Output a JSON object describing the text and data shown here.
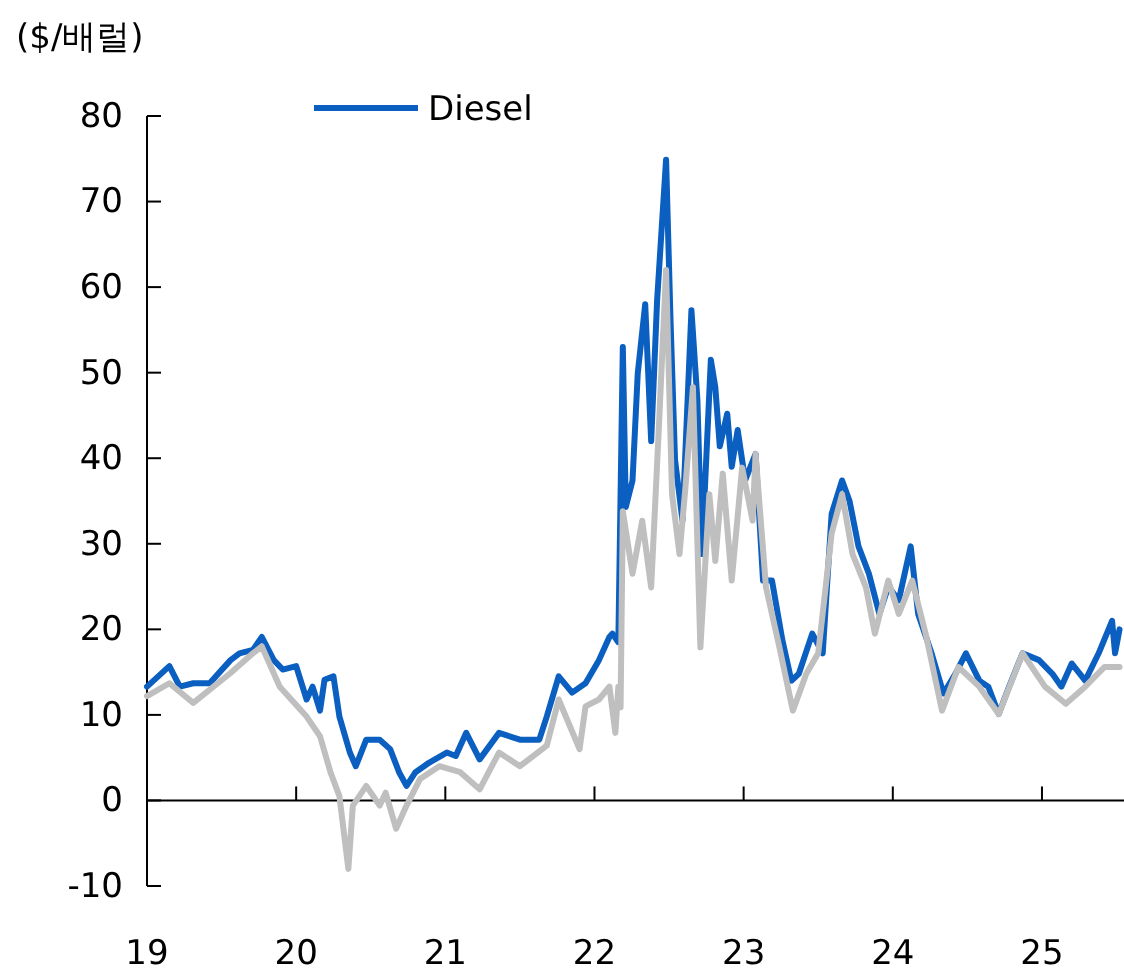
{
  "chart_data": {
    "type": "line",
    "ylabel": "($/배럴)",
    "xlim": [
      19,
      25.55
    ],
    "xticks": [
      19,
      20,
      21,
      22,
      23,
      24,
      25
    ],
    "ylim": [
      -10,
      80
    ],
    "yticks": [
      -10,
      0,
      10,
      20,
      30,
      40,
      50,
      60,
      70,
      80
    ],
    "legend": "top left",
    "marker": "none",
    "line_style": "solid",
    "series": [
      {
        "name": "Diesel",
        "color": "#0a5fc0",
        "x": [
          19.0,
          19.15,
          19.22,
          19.31,
          19.42,
          19.56,
          19.62,
          19.71,
          19.77,
          19.85,
          19.91,
          20.0,
          20.07,
          20.11,
          20.16,
          20.19,
          20.25,
          20.29,
          20.36,
          20.4,
          20.47,
          20.56,
          20.63,
          20.69,
          20.74,
          20.8,
          20.89,
          21.01,
          21.07,
          21.14,
          21.23,
          21.36,
          21.5,
          21.63,
          21.68,
          21.76,
          21.85,
          21.94,
          22.03,
          22.1,
          22.12,
          22.16,
          22.19,
          22.21,
          22.255,
          22.29,
          22.34,
          22.38,
          22.42,
          22.48,
          22.51,
          22.54,
          22.59,
          22.65,
          22.69,
          22.72,
          22.78,
          22.81,
          22.84,
          22.89,
          22.92,
          22.96,
          23.01,
          23.08,
          23.13,
          23.19,
          23.26,
          23.32,
          23.37,
          23.46,
          23.53,
          23.59,
          23.66,
          23.71,
          23.77,
          23.84,
          23.91,
          23.97,
          24.04,
          24.12,
          24.17,
          24.26,
          24.34,
          24.42,
          24.49,
          24.58,
          24.64,
          24.71,
          24.78,
          24.87,
          24.98,
          25.07,
          25.13,
          25.2,
          25.29,
          25.38,
          25.47,
          25.49,
          25.52
        ],
        "values": [
          13.3,
          15.7,
          13.3,
          13.7,
          13.7,
          16.4,
          17.2,
          17.6,
          19.1,
          16.4,
          15.3,
          15.7,
          11.8,
          13.3,
          10.5,
          14.1,
          14.5,
          9.8,
          5.6,
          4,
          7.1,
          7.1,
          6,
          3.3,
          1.7,
          3.3,
          4.4,
          5.6,
          5.2,
          7.9,
          4.8,
          7.9,
          7.1,
          7.1,
          9.8,
          14.5,
          12.6,
          13.7,
          16.4,
          19.1,
          19.5,
          18.5,
          53,
          34.3,
          37.4,
          49.9,
          58,
          42,
          58.5,
          74.9,
          56,
          39.8,
          32.7,
          57.3,
          46.8,
          28.8,
          51.5,
          48.3,
          41.4,
          45.2,
          39,
          43.3,
          37.4,
          40.5,
          25.7,
          25.7,
          18.7,
          14,
          14.8,
          19.5,
          17.2,
          33.5,
          37.4,
          35,
          29.7,
          26.5,
          21.8,
          25,
          23.4,
          29.7,
          21.8,
          17.2,
          12.5,
          14.8,
          17.2,
          14,
          13.3,
          10.1,
          13.3,
          17.2,
          16.4,
          14.8,
          13.3,
          16,
          14,
          17.2,
          21,
          17.2,
          20
        ]
      },
      {
        "color": "#bfbfbf",
        "x": [
          19.0,
          19.15,
          19.31,
          19.56,
          19.71,
          19.77,
          19.89,
          20.07,
          20.16,
          20.23,
          20.29,
          20.35,
          20.38,
          20.47,
          20.56,
          20.6,
          20.67,
          20.74,
          20.83,
          20.96,
          21.1,
          21.23,
          21.36,
          21.5,
          21.68,
          21.76,
          21.9,
          21.94,
          22.03,
          22.1,
          22.14,
          22.16,
          22.175,
          22.19,
          22.255,
          22.32,
          22.38,
          22.43,
          22.48,
          22.52,
          22.57,
          22.61,
          22.66,
          22.71,
          22.77,
          22.81,
          22.86,
          22.92,
          22.99,
          23.06,
          23.08,
          23.15,
          23.24,
          23.33,
          23.42,
          23.5,
          23.59,
          23.66,
          23.73,
          23.82,
          23.88,
          23.97,
          24.04,
          24.13,
          24.22,
          24.33,
          24.44,
          24.58,
          24.71,
          24.87,
          25.02,
          25.16,
          25.29,
          25.42,
          25.52
        ],
        "values": [
          12.2,
          13.7,
          11.4,
          14.9,
          17.2,
          18,
          13.3,
          9.8,
          7.5,
          3.3,
          0.5,
          -8,
          -0.6,
          1.7,
          -0.6,
          0.9,
          -3.3,
          -0.6,
          2.5,
          4,
          3.3,
          1.3,
          5.6,
          4,
          6.4,
          11.8,
          6,
          11,
          11.8,
          13.3,
          7.9,
          13.3,
          10.9,
          33.8,
          26.5,
          32.7,
          24.9,
          43,
          62,
          35.8,
          28.8,
          36.6,
          48.3,
          17.9,
          35.8,
          28,
          38.2,
          25.7,
          38.9,
          32.7,
          40.5,
          24.9,
          17.9,
          10.5,
          14.8,
          17.2,
          31.2,
          35.8,
          28.8,
          24.9,
          19.5,
          25.7,
          21.8,
          25.7,
          19.5,
          10.5,
          15.6,
          13.3,
          10.1,
          17.2,
          13.3,
          11.3,
          13.3,
          15.6,
          15.6
        ]
      }
    ]
  }
}
